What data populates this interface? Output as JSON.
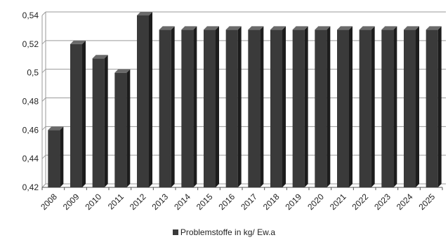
{
  "chart_data": {
    "type": "bar",
    "categories": [
      "2008",
      "2009",
      "2010",
      "2011",
      "2012",
      "2013",
      "2014",
      "2015",
      "2016",
      "2017",
      "2018",
      "2019",
      "2020",
      "2021",
      "2022",
      "2023",
      "2024",
      "2025"
    ],
    "series": [
      {
        "name": "Problemstoffe in kg/ Ew.a",
        "values": [
          0.46,
          0.52,
          0.51,
          0.5,
          0.54,
          0.53,
          0.53,
          0.53,
          0.53,
          0.53,
          0.53,
          0.53,
          0.53,
          0.53,
          0.53,
          0.53,
          0.53,
          0.53
        ]
      }
    ],
    "y_ticks": [
      "0,42",
      "0,44",
      "0,46",
      "0,48",
      "0,5",
      "0,52",
      "0,54"
    ],
    "ylim": [
      0.42,
      0.54
    ],
    "grid": true,
    "legend_position": "bottom",
    "colors": {
      "bar_front": "#3a3a3a",
      "bar_side": "#1c1c1c",
      "bar_top": "#6a6a6a",
      "grid": "#9a9a9a"
    }
  }
}
